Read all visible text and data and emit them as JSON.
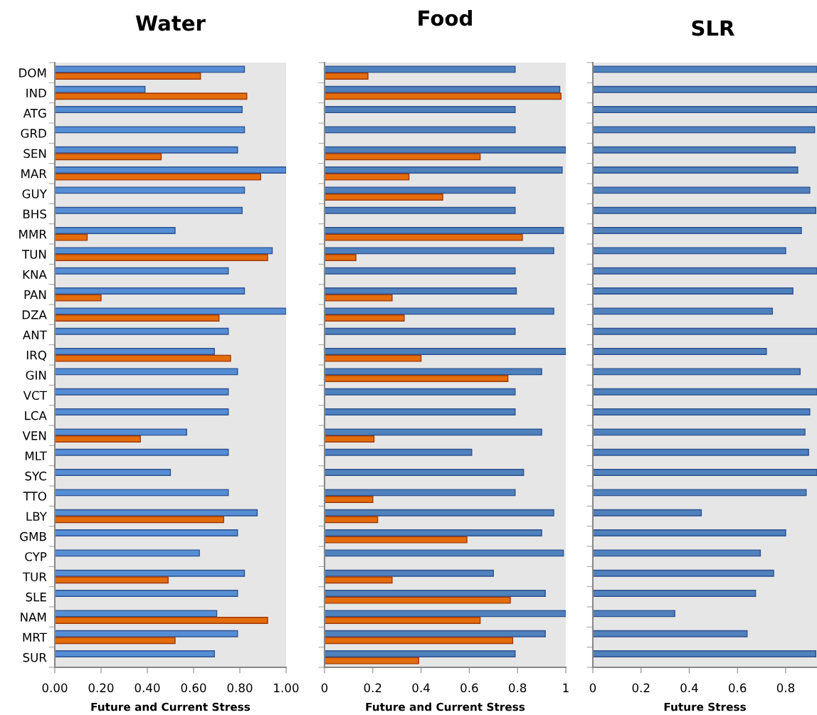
{
  "chart_data": [
    {
      "type": "bar",
      "orientation": "horizontal",
      "title": "Water",
      "xlabel": "Future and Current Stress",
      "categories": [
        "DOM",
        "IND",
        "ATG",
        "GRD",
        "SEN",
        "MAR",
        "GUY",
        "BHS",
        "MMR",
        "TUN",
        "KNA",
        "PAN",
        "DZA",
        "ANT",
        "IRQ",
        "GIN",
        "VCT",
        "LCA",
        "VEN",
        "MLT",
        "SYC",
        "TTO",
        "LBY",
        "GMB",
        "CYP",
        "TUR",
        "SLE",
        "NAM",
        "MRT",
        "SUR"
      ],
      "series": [
        {
          "color": "#558ed5",
          "values": [
            0.82,
            0.39,
            0.81,
            0.82,
            0.79,
            1.0,
            0.82,
            0.81,
            0.52,
            0.94,
            0.75,
            0.82,
            1.0,
            0.75,
            0.69,
            0.79,
            0.75,
            0.75,
            0.57,
            0.75,
            0.5,
            0.75,
            0.875,
            0.79,
            0.625,
            0.82,
            0.79,
            0.7,
            0.79,
            0.69
          ]
        },
        {
          "color": "#e46c0a",
          "values": [
            0.63,
            0.83,
            null,
            null,
            0.46,
            0.89,
            null,
            null,
            0.14,
            0.92,
            null,
            0.2,
            0.71,
            null,
            0.76,
            null,
            null,
            null,
            0.37,
            null,
            null,
            null,
            0.73,
            null,
            null,
            0.49,
            null,
            0.92,
            0.52,
            null
          ]
        }
      ],
      "xlim": [
        0,
        1
      ],
      "xticks": [
        {
          "value": 0,
          "label": "0.00"
        },
        {
          "value": 0.2,
          "label": "0.20"
        },
        {
          "value": 0.4,
          "label": "0.40"
        },
        {
          "value": 0.6,
          "label": "0.60"
        },
        {
          "value": 0.8,
          "label": "0.80"
        },
        {
          "value": 1,
          "label": "1.00"
        }
      ],
      "grid": false
    },
    {
      "type": "bar",
      "orientation": "horizontal",
      "title": "Food",
      "xlabel": "Future and Current Stress",
      "categories": [
        null,
        null,
        null,
        null,
        null,
        null,
        null,
        null,
        null,
        null,
        null,
        null,
        null,
        null,
        null,
        null,
        null,
        null,
        null,
        null,
        null,
        null,
        null,
        null,
        null,
        null,
        null,
        null,
        null,
        null
      ],
      "series": [
        {
          "color": "#4f81bd",
          "values": [
            0.79,
            0.975,
            0.79,
            0.79,
            1.0,
            0.985,
            0.79,
            0.79,
            0.99,
            0.95,
            0.79,
            0.795,
            0.95,
            0.79,
            1.0,
            0.9,
            0.79,
            0.79,
            0.9,
            0.61,
            0.825,
            0.79,
            0.95,
            0.9,
            0.99,
            0.7,
            0.915,
            1.0,
            0.915,
            0.79
          ]
        },
        {
          "color": "#e46c0a",
          "values": [
            0.18,
            0.98,
            null,
            null,
            0.645,
            0.35,
            0.49,
            null,
            0.82,
            0.13,
            null,
            0.28,
            0.33,
            null,
            0.4,
            0.76,
            null,
            null,
            0.205,
            null,
            null,
            0.2,
            0.22,
            0.59,
            null,
            0.28,
            0.77,
            0.645,
            0.78,
            0.39
          ]
        }
      ],
      "xlim": [
        0,
        1
      ],
      "xticks": [
        0,
        0.2,
        0.4,
        0.6,
        0.8,
        1
      ],
      "grid": false
    },
    {
      "type": "bar",
      "orientation": "horizontal",
      "title": "SLR",
      "xlabel": "Future Stress",
      "categories": [
        null,
        null,
        null,
        null,
        null,
        null,
        null,
        null,
        null,
        null,
        null,
        null,
        null,
        null,
        null,
        null,
        null,
        null,
        null,
        null,
        null,
        null,
        null,
        null,
        null,
        null,
        null,
        null,
        null,
        null
      ],
      "series": [
        {
          "color": "#4f81bd",
          "values": [
            0.93,
            0.93,
            0.93,
            0.92,
            0.84,
            0.85,
            0.9,
            0.925,
            0.865,
            0.8,
            0.93,
            0.83,
            0.745,
            0.93,
            0.72,
            0.86,
            0.93,
            0.9,
            0.88,
            0.895,
            0.93,
            0.885,
            0.45,
            0.8,
            0.695,
            0.75,
            0.675,
            0.34,
            0.64,
            0.925
          ]
        }
      ],
      "xlim": [
        0,
        0.93
      ],
      "xticks": [
        0,
        0.2,
        0.4,
        0.6,
        0.8
      ],
      "grid": false
    }
  ]
}
